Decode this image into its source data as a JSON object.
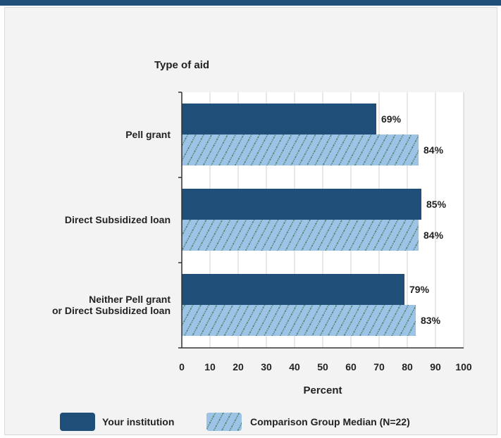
{
  "chart_data": {
    "type": "bar",
    "orientation": "horizontal",
    "title": "Type of aid",
    "xlabel": "Percent",
    "xlim": [
      0,
      100
    ],
    "xticks": [
      0,
      10,
      20,
      30,
      40,
      50,
      60,
      70,
      80,
      90,
      100
    ],
    "grid": true,
    "legend_position": "bottom",
    "categories": [
      [
        "Pell grant"
      ],
      [
        "Direct Subsidized loan"
      ],
      [
        "Neither Pell grant",
        "or Direct Subsidized loan"
      ]
    ],
    "series": [
      {
        "name": "Your institution",
        "values": [
          69,
          85,
          79
        ],
        "labels": [
          "69%",
          "85%",
          "79%"
        ],
        "color": "#1f4e79",
        "pattern": "solid"
      },
      {
        "name": "Comparison Group Median (N=22)",
        "values": [
          84,
          84,
          83
        ],
        "labels": [
          "84%",
          "84%",
          "83%"
        ],
        "color": "#9dc3e6",
        "pattern": "hatched"
      }
    ]
  }
}
